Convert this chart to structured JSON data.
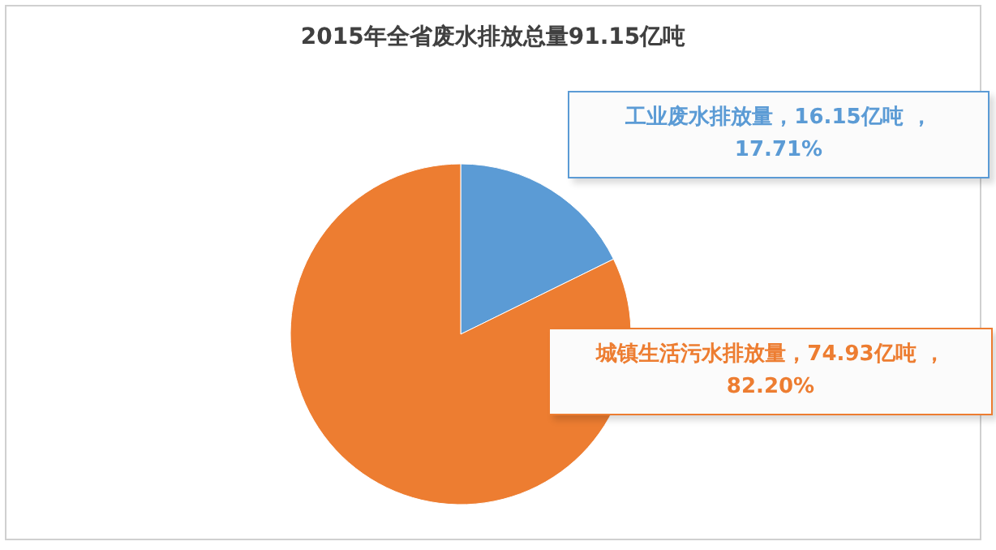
{
  "chart_data": {
    "type": "pie",
    "title": "2015年全省废水排放总量91.15亿吨",
    "categories": [
      "工业废水排放量",
      "城镇生活污水排放量"
    ],
    "values": [
      16.15,
      74.93
    ],
    "colors": [
      "#5b9bd5",
      "#ed7d31"
    ],
    "value_labels": [
      "，16.15亿吨 ，\n17.71%",
      "，74.93亿吨 ，\n82.20%"
    ],
    "legend": false
  }
}
